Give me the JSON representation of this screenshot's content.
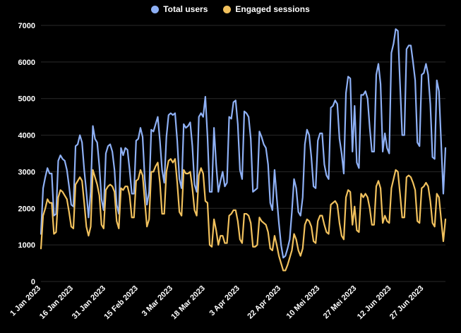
{
  "chart_data": {
    "type": "line",
    "title": "",
    "xlabel": "",
    "ylabel": "",
    "ylim": [
      0,
      7000
    ],
    "yticks": [
      0,
      1000,
      2000,
      3000,
      4000,
      5000,
      6000,
      7000
    ],
    "grid": "horizontal",
    "legend": "top-center",
    "x_start": "1 Jan 2023",
    "x_end": "30 Jun 2023",
    "x_tick_labels": [
      "1 Jan 2023",
      "16 Jan 2023",
      "31 Jan 2023",
      "15 Feb 2023",
      "3 Mar 2023",
      "18 Mar 2023",
      "3 Apr 2023",
      "22 Apr 2023",
      "10 Mei 2023",
      "27 Mei 2023",
      "12 Jun 2023",
      "27 Jun 2023"
    ],
    "x_tick_positions": [
      0,
      15,
      30,
      45,
      61,
      76,
      92,
      111,
      129,
      146,
      162,
      177
    ],
    "series": [
      {
        "name": "Total users",
        "color": "#8eb0f5",
        "values": [
          1300,
          2550,
          2850,
          3100,
          2950,
          2950,
          1800,
          1850,
          3300,
          3450,
          3350,
          3300,
          3050,
          2600,
          2100,
          2050,
          3700,
          3750,
          4000,
          3800,
          3050,
          2450,
          1750,
          2450,
          4250,
          3900,
          3800,
          3150,
          2250,
          1950,
          3500,
          3700,
          3750,
          3550,
          3050,
          2100,
          1850,
          3650,
          3450,
          3650,
          3600,
          3050,
          2400,
          2400,
          3850,
          3900,
          4200,
          3950,
          2800,
          2100,
          2450,
          4150,
          4100,
          4300,
          4500,
          3850,
          3050,
          2700,
          3950,
          4550,
          4600,
          4550,
          4600,
          3850,
          2800,
          2550,
          4300,
          4200,
          4250,
          4350,
          3700,
          2650,
          2450,
          4500,
          4600,
          4500,
          5050,
          3950,
          2450,
          2450,
          4200,
          3200,
          2450,
          2750,
          3000,
          2600,
          2700,
          4500,
          4450,
          4900,
          4950,
          4300,
          3050,
          2800,
          4650,
          4600,
          4500,
          3900,
          2450,
          2500,
          2550,
          4100,
          3950,
          3750,
          3650,
          3200,
          2150,
          1950,
          3050,
          2300,
          1600,
          1000,
          650,
          700,
          900,
          1150,
          1900,
          2800,
          2550,
          1900,
          1800,
          2300,
          3750,
          4150,
          4000,
          3400,
          2600,
          2550,
          3850,
          4050,
          4050,
          3200,
          2900,
          2800,
          4750,
          4800,
          4950,
          4850,
          3900,
          3500,
          2950,
          5150,
          5600,
          5550,
          3550,
          4800,
          3250,
          3100,
          5100,
          5100,
          5200,
          5000,
          4200,
          3550,
          3550,
          5650,
          5950,
          5400,
          3550,
          4050,
          3650,
          3500,
          6250,
          6500,
          6900,
          6850,
          5400,
          4000,
          4000,
          6350,
          6450,
          6450,
          6000,
          5500,
          3800,
          3700,
          5650,
          5700,
          5950,
          5650,
          4850,
          3400,
          3350,
          5500,
          5200,
          3800,
          2400,
          3650
        ]
      },
      {
        "name": "Engaged sessions",
        "color": "#f1c15d",
        "values": [
          900,
          1800,
          2000,
          2250,
          2150,
          2150,
          1300,
          1350,
          2300,
          2500,
          2450,
          2350,
          2250,
          1900,
          1500,
          1450,
          2650,
          2750,
          2850,
          2750,
          2150,
          1500,
          1250,
          1500,
          3050,
          2850,
          2650,
          2350,
          1550,
          1450,
          2500,
          2600,
          2650,
          2600,
          2450,
          1650,
          1450,
          2550,
          2500,
          2600,
          2600,
          2350,
          1750,
          1750,
          2750,
          2800,
          3050,
          2900,
          2200,
          1500,
          1700,
          3000,
          3000,
          3150,
          3250,
          2700,
          1850,
          1850,
          3000,
          3300,
          3350,
          3250,
          3350,
          2700,
          1900,
          1800,
          3050,
          2950,
          2950,
          3000,
          2550,
          1950,
          1800,
          2900,
          3100,
          2950,
          2200,
          2150,
          1000,
          950,
          1700,
          1400,
          1000,
          1250,
          1250,
          1050,
          1050,
          1800,
          1850,
          1950,
          1950,
          1650,
          1150,
          1050,
          1850,
          1850,
          1800,
          1600,
          950,
          950,
          1000,
          1750,
          1650,
          1600,
          1550,
          1350,
          900,
          850,
          1250,
          1000,
          700,
          500,
          300,
          300,
          450,
          650,
          850,
          1300,
          1150,
          850,
          700,
          900,
          1550,
          1700,
          1650,
          1500,
          1100,
          1050,
          1650,
          1800,
          1800,
          1550,
          1350,
          1300,
          2100,
          2150,
          2200,
          2100,
          1600,
          1250,
          1150,
          2300,
          2500,
          2450,
          1550,
          2050,
          1400,
          1350,
          2400,
          2300,
          2400,
          2300,
          2000,
          1550,
          1550,
          2600,
          2750,
          2550,
          1600,
          1800,
          1650,
          1600,
          2550,
          2800,
          3050,
          3000,
          2400,
          1750,
          1750,
          2850,
          2900,
          2850,
          2700,
          2500,
          1650,
          1600,
          2550,
          2600,
          2700,
          2600,
          2200,
          1600,
          1500,
          2400,
          2300,
          1700,
          1100,
          1700
        ]
      }
    ]
  }
}
